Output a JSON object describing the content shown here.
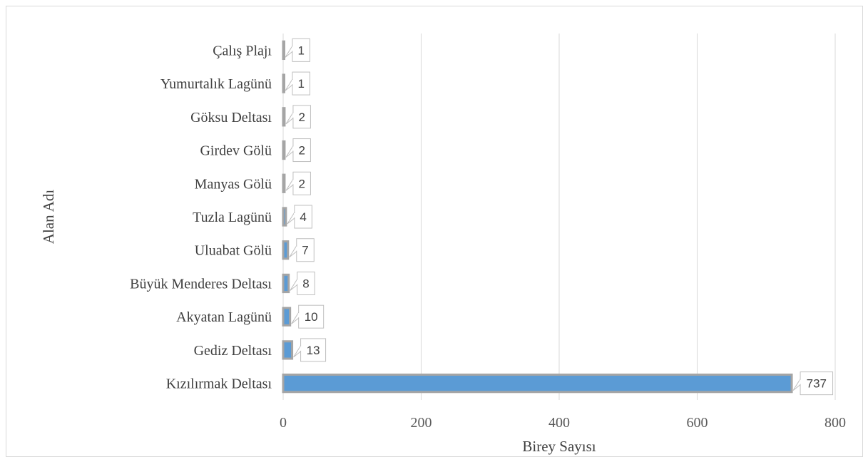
{
  "chart_data": {
    "type": "bar",
    "orientation": "horizontal",
    "categories": [
      "Kızılırmak Deltası",
      "Gediz Deltası",
      "Akyatan Lagünü",
      "Büyük Menderes Deltası",
      "Uluabat Gölü",
      "Tuzla Lagünü",
      "Manyas Gölü",
      "Girdev Gölü",
      "Göksu Deltası",
      "Yumurtalık Lagünü",
      "Çalış Plajı"
    ],
    "values": [
      737,
      13,
      10,
      8,
      7,
      4,
      2,
      2,
      2,
      1,
      1
    ],
    "data_labels": [
      "737",
      "13",
      "10",
      "8",
      "7",
      "4",
      "2",
      "2",
      "2",
      "1",
      "1"
    ],
    "title": "",
    "xlabel": "Birey Sayısı",
    "ylabel": "Alan Adı",
    "xlim": [
      0,
      800
    ],
    "x_ticks": [
      "0",
      "200",
      "400",
      "600",
      "800"
    ],
    "x_tick_values": [
      0,
      200,
      400,
      600,
      800
    ],
    "grid": "vertical",
    "legend": "none",
    "colors": {
      "bar_fill": "#5b9bd5",
      "bar_edge": "#a5a5a5",
      "gridline": "#d9d9d9",
      "label_border": "#bfbfbf"
    }
  }
}
